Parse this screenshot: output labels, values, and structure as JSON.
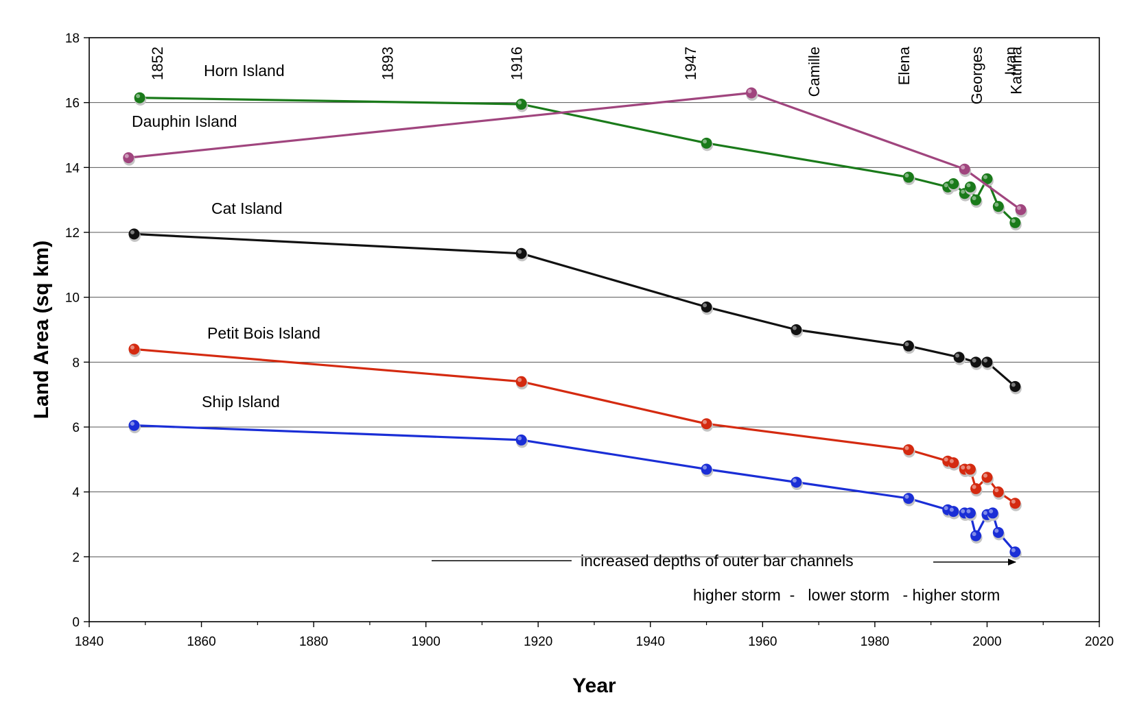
{
  "chart_data": {
    "type": "line",
    "xlabel": "Year",
    "ylabel": "Land Area (sq km)",
    "xlim": [
      1840,
      2020
    ],
    "ylim": [
      0,
      18
    ],
    "x_ticks": [
      1840,
      1860,
      1880,
      1900,
      1920,
      1940,
      1960,
      1980,
      2000,
      2020
    ],
    "y_ticks": [
      0,
      2,
      4,
      6,
      8,
      10,
      12,
      14,
      16,
      18
    ],
    "grid": "horizontal",
    "series": [
      {
        "name": "Horn Island",
        "color": "#1a7a1a",
        "points": [
          [
            1849,
            16.15
          ],
          [
            1917,
            15.95
          ],
          [
            1950,
            14.75
          ],
          [
            1986,
            13.7
          ],
          [
            1993,
            13.4
          ],
          [
            1994,
            13.5
          ],
          [
            1996,
            13.2
          ],
          [
            1997,
            13.4
          ],
          [
            1998,
            13.0
          ],
          [
            2000,
            13.65
          ],
          [
            2002,
            12.8
          ],
          [
            2005,
            12.3
          ]
        ]
      },
      {
        "name": "Dauphin Island",
        "color": "#a0457e",
        "points": [
          [
            1847,
            14.3
          ],
          [
            1958,
            16.3
          ],
          [
            1996,
            13.95
          ],
          [
            2006,
            12.7
          ]
        ]
      },
      {
        "name": "Cat Island",
        "color": "#111111",
        "points": [
          [
            1848,
            11.95
          ],
          [
            1917,
            11.35
          ],
          [
            1950,
            9.7
          ],
          [
            1966,
            9.0
          ],
          [
            1986,
            8.5
          ],
          [
            1995,
            8.15
          ],
          [
            1998,
            8.0
          ],
          [
            2000,
            8.0
          ],
          [
            2005,
            7.25
          ]
        ]
      },
      {
        "name": "Petit Bois Island",
        "color": "#d42a10",
        "points": [
          [
            1848,
            8.4
          ],
          [
            1917,
            7.4
          ],
          [
            1950,
            6.1
          ],
          [
            1986,
            5.3
          ],
          [
            1993,
            4.95
          ],
          [
            1994,
            4.9
          ],
          [
            1996,
            4.7
          ],
          [
            1997,
            4.7
          ],
          [
            1998,
            4.1
          ],
          [
            2000,
            4.45
          ],
          [
            2002,
            4.0
          ],
          [
            2005,
            3.65
          ]
        ]
      },
      {
        "name": "Ship Island",
        "color": "#1a2ed6",
        "points": [
          [
            1848,
            6.05
          ],
          [
            1917,
            5.6
          ],
          [
            1950,
            4.7
          ],
          [
            1966,
            4.3
          ],
          [
            1986,
            3.8
          ],
          [
            1993,
            3.45
          ],
          [
            1994,
            3.4
          ],
          [
            1996,
            3.35
          ],
          [
            1997,
            3.35
          ],
          [
            1998,
            2.65
          ],
          [
            2000,
            3.3
          ],
          [
            2001,
            3.35
          ],
          [
            2002,
            2.75
          ],
          [
            2005,
            2.15
          ]
        ]
      }
    ],
    "events": [
      {
        "label": "1852",
        "year": 1852
      },
      {
        "label": "1893",
        "year": 1893
      },
      {
        "label": "1916",
        "year": 1916
      },
      {
        "label": "1947",
        "year": 1947
      },
      {
        "label": "Camille",
        "year": 1969
      },
      {
        "label": "Elena",
        "year": 1985
      },
      {
        "label": "Georges",
        "year": 1998
      },
      {
        "label": "Ivan",
        "year": 2004
      },
      {
        "label": "Katrina",
        "year": 2005
      }
    ],
    "annotations": {
      "arrow_text": "increased depths of outer bar channels",
      "storm_text": "higher storm  -   lower storm   - higher storm"
    }
  }
}
